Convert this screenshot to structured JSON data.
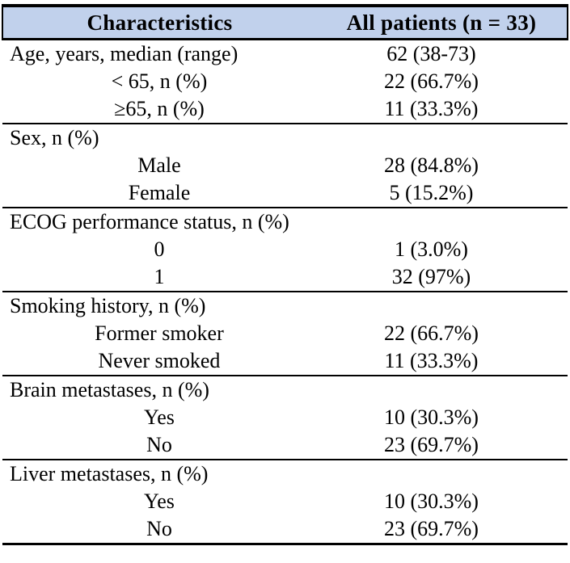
{
  "colors": {
    "header_bg": "#c1d1ec",
    "border": "#000000",
    "text": "#000000"
  },
  "table": {
    "header": {
      "characteristics": "Characteristics",
      "all_patients": "All patients (n = 33)"
    },
    "sections": [
      {
        "label": "Age, years, median (range)",
        "value": "62 (38-73)",
        "rows": [
          {
            "label": "< 65, n (%)",
            "value": "22 (66.7%)"
          },
          {
            "label": "≥65, n (%)",
            "value": "11 (33.3%)"
          }
        ]
      },
      {
        "label": "Sex, n (%)",
        "value": "",
        "rows": [
          {
            "label": "Male",
            "value": "28 (84.8%)"
          },
          {
            "label": "Female",
            "value": "5 (15.2%)"
          }
        ]
      },
      {
        "label": "ECOG performance status, n (%)",
        "value": "",
        "rows": [
          {
            "label": "0",
            "value": "1 (3.0%)"
          },
          {
            "label": "1",
            "value": "32 (97%)"
          }
        ]
      },
      {
        "label": "Smoking history, n (%)",
        "value": "",
        "rows": [
          {
            "label": "Former smoker",
            "value": "22 (66.7%)"
          },
          {
            "label": "Never smoked",
            "value": "11 (33.3%)"
          }
        ]
      },
      {
        "label": "Brain metastases, n (%)",
        "value": "",
        "rows": [
          {
            "label": "Yes",
            "value": "10 (30.3%)"
          },
          {
            "label": "No",
            "value": "23 (69.7%)"
          }
        ]
      },
      {
        "label": "Liver metastases, n (%)",
        "value": "",
        "rows": [
          {
            "label": "Yes",
            "value": "10 (30.3%)"
          },
          {
            "label": "No",
            "value": "23 (69.7%)"
          }
        ]
      }
    ]
  }
}
